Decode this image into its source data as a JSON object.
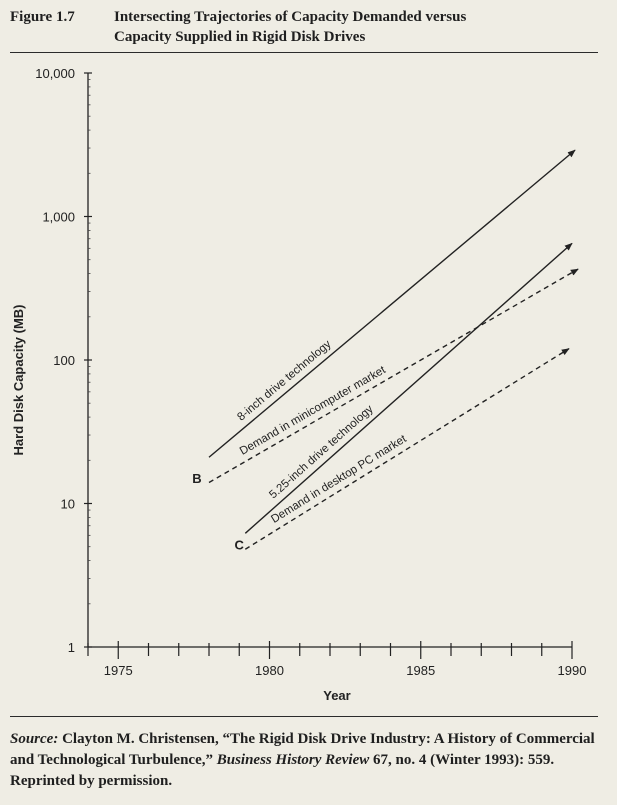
{
  "figure": {
    "label": "Figure 1.7",
    "title_line1": "Intersecting Trajectories of Capacity Demanded versus",
    "title_line2": "Capacity Supplied in Rigid Disk Drives"
  },
  "chart_data": {
    "type": "line",
    "title": "Intersecting Trajectories of Capacity Demanded versus Capacity Supplied in Rigid Disk Drives",
    "xlabel": "Year",
    "ylabel": "Hard Disk Capacity (MB)",
    "xlim": [
      1974,
      1990
    ],
    "ylim": [
      1,
      10000
    ],
    "y_scale": "log",
    "x_ticks": [
      1975,
      1980,
      1985,
      1990
    ],
    "y_ticks": [
      1,
      10,
      100,
      1000,
      10000
    ],
    "y_tick_labels": [
      "1",
      "10",
      "100",
      "1,000",
      "10,000"
    ],
    "grid": false,
    "series": [
      {
        "name": "8-inch drive technology",
        "style": "solid",
        "x": [
          1978,
          1990.1
        ],
        "y": [
          21,
          2900
        ]
      },
      {
        "name": "Demand in minicomputer market",
        "style": "dashed",
        "x": [
          1978,
          1990.2
        ],
        "y": [
          14,
          430
        ]
      },
      {
        "name": "5.25-inch drive technology",
        "style": "solid",
        "x": [
          1979.2,
          1990
        ],
        "y": [
          6.2,
          650
        ]
      },
      {
        "name": "Demand in desktop PC market",
        "style": "dashed",
        "x": [
          1979.2,
          1989.9
        ],
        "y": [
          4.8,
          120
        ]
      }
    ],
    "annotations": [
      {
        "text": "B",
        "x": 1977.6,
        "y": 15
      },
      {
        "text": "C",
        "x": 1979.0,
        "y": 5.2
      }
    ]
  },
  "source": {
    "label": "Source:",
    "text1": " Clayton M. Christensen, “The Rigid Disk Drive Industry: A History of Commercial and Technological Turbulence,” ",
    "journal": "Business History Review",
    "text2": " 67, no. 4 (Winter 1993): 559. Reprinted by permission."
  }
}
